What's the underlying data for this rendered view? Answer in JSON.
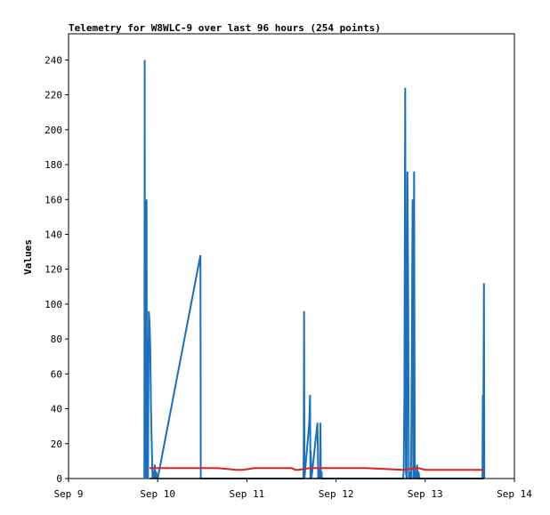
{
  "chart_data": {
    "type": "line",
    "title": "Telemetry for W8WLC-9 over last 96 hours (254 points)",
    "xlabel": "",
    "ylabel": "Values",
    "x_ticks": [
      "Sep 9",
      "Sep 10",
      "Sep 11",
      "Sep 12",
      "Sep 13",
      "Sep 14"
    ],
    "x_range": [
      0,
      120
    ],
    "y_ticks": [
      0,
      20,
      40,
      60,
      80,
      100,
      120,
      140,
      160,
      180,
      200,
      220,
      240
    ],
    "ylim": [
      0,
      255
    ],
    "grid": false,
    "legend": "none",
    "series": [
      {
        "color": "#1a6fbf",
        "x": [
          20.4,
          20.5,
          20.6,
          20.7,
          20.8,
          20.9,
          21.0,
          21.1,
          21.2,
          21.4,
          21.6,
          21.8,
          22.0,
          22.2,
          22.4,
          22.6,
          22.8,
          23.0,
          23.2,
          23.4,
          23.6,
          23.8,
          24.0,
          35.5,
          35.6,
          35.7,
          63.2,
          63.3,
          63.4,
          63.5,
          64.8,
          65.0,
          65.1,
          65.2,
          65.4,
          67.0,
          67.2,
          67.4,
          67.5,
          67.6,
          67.7,
          67.8,
          67.9,
          68.1,
          68.2,
          90.0,
          90.2,
          90.4,
          90.6,
          90.8,
          91.0,
          91.2,
          91.4,
          91.6,
          91.8,
          92.0,
          92.2,
          92.4,
          92.6,
          92.8,
          93.0,
          93.2,
          93.4,
          93.6,
          93.8,
          94.0,
          94.2,
          94.4,
          111.4,
          111.5,
          111.6,
          111.7,
          111.8,
          111.9
        ],
        "values": [
          0,
          240,
          0,
          40,
          16,
          0,
          160,
          8,
          80,
          0,
          96,
          90,
          76,
          40,
          20,
          0,
          4,
          0,
          8,
          0,
          4,
          0,
          0,
          128,
          0,
          0,
          0,
          16,
          96,
          0,
          32,
          48,
          0,
          16,
          0,
          32,
          0,
          4,
          0,
          6,
          0,
          32,
          0,
          4,
          0,
          0,
          4,
          48,
          224,
          4,
          0,
          176,
          112,
          0,
          4,
          0,
          0,
          80,
          160,
          0,
          176,
          0,
          4,
          0,
          8,
          0,
          4,
          0,
          0,
          48,
          0,
          56,
          112,
          0
        ]
      },
      {
        "color": "#e02020",
        "x": [
          21.8,
          22.5,
          23.5,
          30,
          40,
          45,
          47,
          50,
          55,
          60,
          61,
          62,
          65,
          70,
          80,
          90,
          94,
          96,
          100,
          110,
          111.9
        ],
        "values": [
          6,
          6,
          6,
          6,
          6,
          5,
          5,
          6,
          6,
          6,
          5,
          5,
          6,
          6,
          6,
          5,
          6,
          5,
          5,
          5,
          5
        ]
      },
      {
        "color": "#000000",
        "x": [
          21.8,
          111.9
        ],
        "values": [
          0,
          0
        ]
      }
    ]
  }
}
